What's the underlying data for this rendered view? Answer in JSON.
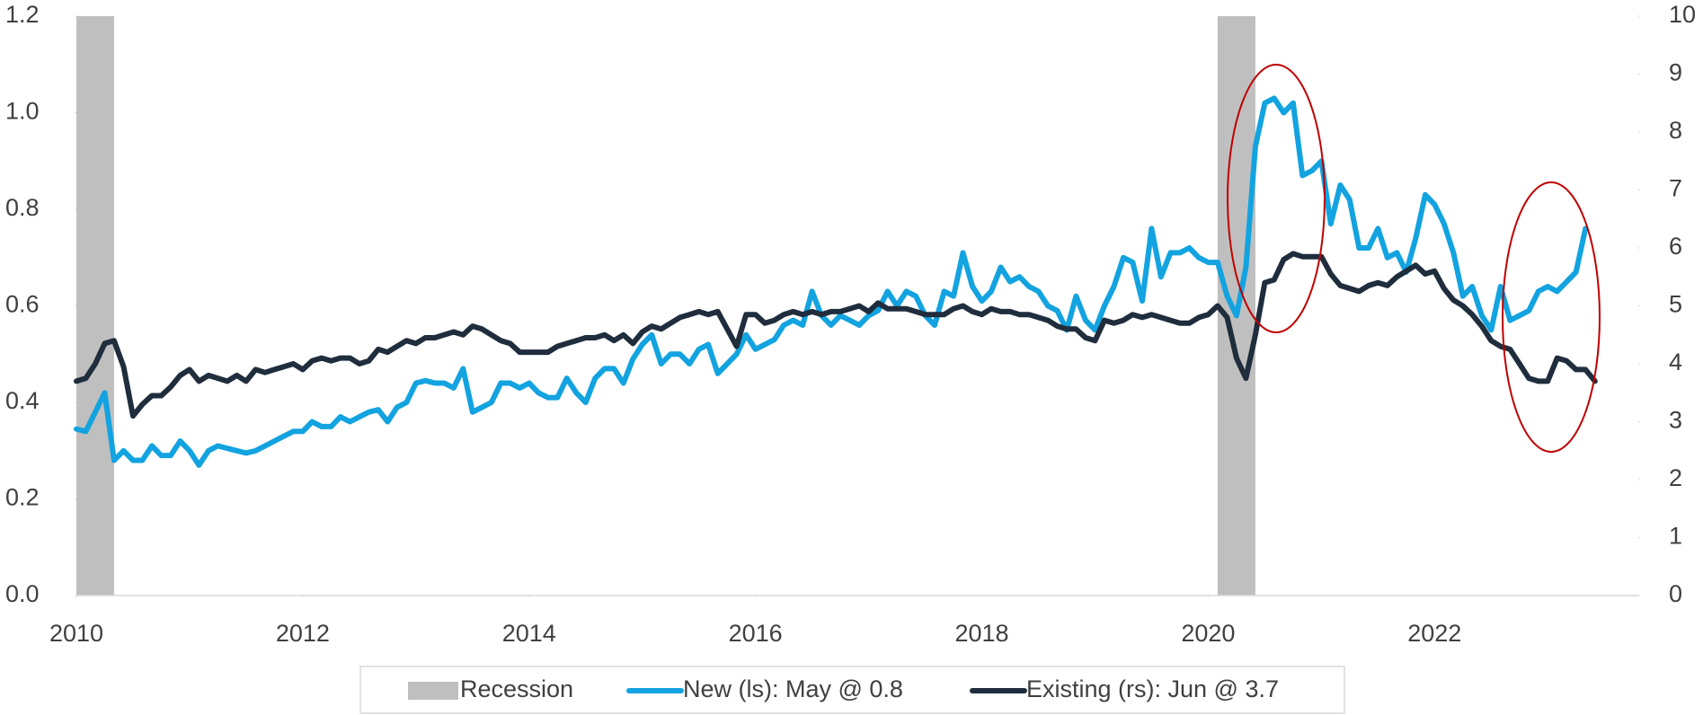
{
  "chart_data": {
    "type": "line",
    "x": [
      2010,
      2010.083,
      2010.167,
      2010.25,
      2010.333,
      2010.417,
      2010.5,
      2010.583,
      2010.667,
      2010.75,
      2010.833,
      2010.917,
      2011,
      2011.083,
      2011.167,
      2011.25,
      2011.333,
      2011.417,
      2011.5,
      2011.583,
      2011.667,
      2011.75,
      2011.833,
      2011.917,
      2012,
      2012.083,
      2012.167,
      2012.25,
      2012.333,
      2012.417,
      2012.5,
      2012.583,
      2012.667,
      2012.75,
      2012.833,
      2012.917,
      2013,
      2013.083,
      2013.167,
      2013.25,
      2013.333,
      2013.417,
      2013.5,
      2013.583,
      2013.667,
      2013.75,
      2013.833,
      2013.917,
      2014,
      2014.083,
      2014.167,
      2014.25,
      2014.333,
      2014.417,
      2014.5,
      2014.583,
      2014.667,
      2014.75,
      2014.833,
      2014.917,
      2015,
      2015.083,
      2015.167,
      2015.25,
      2015.333,
      2015.417,
      2015.5,
      2015.583,
      2015.667,
      2015.75,
      2015.833,
      2015.917,
      2016,
      2016.083,
      2016.167,
      2016.25,
      2016.333,
      2016.417,
      2016.5,
      2016.583,
      2016.667,
      2016.75,
      2016.833,
      2016.917,
      2017,
      2017.083,
      2017.167,
      2017.25,
      2017.333,
      2017.417,
      2017.5,
      2017.583,
      2017.667,
      2017.75,
      2017.833,
      2017.917,
      2018,
      2018.083,
      2018.167,
      2018.25,
      2018.333,
      2018.417,
      2018.5,
      2018.583,
      2018.667,
      2018.75,
      2018.833,
      2018.917,
      2019,
      2019.083,
      2019.167,
      2019.25,
      2019.333,
      2019.417,
      2019.5,
      2019.583,
      2019.667,
      2019.75,
      2019.833,
      2019.917,
      2020,
      2020.083,
      2020.167,
      2020.25,
      2020.333,
      2020.417,
      2020.5,
      2020.583,
      2020.667,
      2020.75,
      2020.833,
      2020.917,
      2021,
      2021.083,
      2021.167,
      2021.25,
      2021.333,
      2021.417,
      2021.5,
      2021.583,
      2021.667,
      2021.75,
      2021.833,
      2021.917,
      2022,
      2022.083,
      2022.167,
      2022.25,
      2022.333,
      2022.417,
      2022.5,
      2022.583,
      2022.667,
      2022.75,
      2022.833,
      2022.917,
      2023,
      2023.083,
      2023.167,
      2023.25,
      2023.333,
      2023.417
    ],
    "series": [
      {
        "name": "New (ls): May @ 0.8",
        "color": "#12a3e0",
        "axis": "y",
        "values": [
          0.345,
          0.34,
          0.38,
          0.42,
          0.28,
          0.3,
          0.28,
          0.28,
          0.31,
          0.29,
          0.29,
          0.32,
          0.3,
          0.27,
          0.3,
          0.31,
          0.305,
          0.3,
          0.295,
          0.3,
          0.31,
          0.32,
          0.33,
          0.34,
          0.34,
          0.36,
          0.35,
          0.35,
          0.37,
          0.36,
          0.37,
          0.38,
          0.385,
          0.36,
          0.39,
          0.4,
          0.44,
          0.445,
          0.44,
          0.44,
          0.43,
          0.47,
          0.38,
          0.39,
          0.4,
          0.44,
          0.44,
          0.43,
          0.44,
          0.42,
          0.41,
          0.41,
          0.45,
          0.42,
          0.4,
          0.45,
          0.47,
          0.47,
          0.44,
          0.49,
          0.52,
          0.54,
          0.48,
          0.5,
          0.5,
          0.48,
          0.51,
          0.52,
          0.46,
          0.48,
          0.5,
          0.54,
          0.51,
          0.52,
          0.53,
          0.56,
          0.57,
          0.56,
          0.63,
          0.58,
          0.56,
          0.58,
          0.57,
          0.56,
          0.58,
          0.59,
          0.63,
          0.6,
          0.63,
          0.62,
          0.58,
          0.56,
          0.63,
          0.62,
          0.71,
          0.64,
          0.61,
          0.63,
          0.68,
          0.65,
          0.66,
          0.64,
          0.63,
          0.6,
          0.59,
          0.55,
          0.62,
          0.57,
          0.55,
          0.6,
          0.64,
          0.7,
          0.69,
          0.61,
          0.76,
          0.66,
          0.71,
          0.71,
          0.72,
          0.7,
          0.69,
          0.69,
          0.62,
          0.58,
          0.68,
          0.93,
          1.02,
          1.03,
          1.0,
          1.02,
          0.87,
          0.88,
          0.9,
          0.77,
          0.85,
          0.82,
          0.72,
          0.72,
          0.76,
          0.7,
          0.71,
          0.67,
          0.74,
          0.83,
          0.81,
          0.77,
          0.71,
          0.62,
          0.64,
          0.58,
          0.55,
          0.64,
          0.57,
          0.58,
          0.59,
          0.63,
          0.64,
          0.63,
          0.65,
          0.67,
          0.76,
          null
        ]
      },
      {
        "name": "Existing (rs): Jun @ 3.7",
        "color": "#1f2d3d",
        "axis": "y2",
        "values": [
          3.7,
          3.75,
          4.0,
          4.35,
          4.4,
          3.95,
          3.1,
          3.3,
          3.45,
          3.45,
          3.6,
          3.8,
          3.9,
          3.7,
          3.8,
          3.75,
          3.7,
          3.8,
          3.7,
          3.9,
          3.85,
          3.9,
          3.95,
          4.0,
          3.9,
          4.05,
          4.1,
          4.05,
          4.1,
          4.1,
          4.0,
          4.05,
          4.25,
          4.2,
          4.3,
          4.4,
          4.35,
          4.45,
          4.45,
          4.5,
          4.55,
          4.5,
          4.65,
          4.6,
          4.5,
          4.4,
          4.35,
          4.2,
          4.2,
          4.2,
          4.2,
          4.3,
          4.35,
          4.4,
          4.45,
          4.45,
          4.5,
          4.4,
          4.5,
          4.35,
          4.55,
          4.65,
          4.6,
          4.7,
          4.8,
          4.85,
          4.9,
          4.85,
          4.9,
          4.6,
          4.3,
          4.85,
          4.85,
          4.7,
          4.75,
          4.85,
          4.9,
          4.85,
          4.9,
          4.85,
          4.9,
          4.9,
          4.95,
          5.0,
          4.9,
          5.05,
          4.95,
          4.95,
          4.95,
          4.9,
          4.85,
          4.85,
          4.85,
          4.95,
          5.0,
          4.9,
          4.85,
          4.95,
          4.9,
          4.9,
          4.85,
          4.85,
          4.8,
          4.75,
          4.65,
          4.6,
          4.6,
          4.45,
          4.4,
          4.75,
          4.7,
          4.75,
          4.85,
          4.8,
          4.85,
          4.8,
          4.75,
          4.7,
          4.7,
          4.8,
          4.85,
          5.0,
          4.8,
          4.1,
          3.75,
          4.5,
          5.4,
          5.45,
          5.8,
          5.9,
          5.85,
          5.85,
          5.85,
          5.55,
          5.35,
          5.3,
          5.25,
          5.35,
          5.4,
          5.35,
          5.5,
          5.6,
          5.7,
          5.55,
          5.6,
          5.3,
          5.1,
          5.0,
          4.85,
          4.65,
          4.4,
          4.3,
          4.25,
          4.0,
          3.75,
          3.7,
          3.7,
          4.1,
          4.05,
          3.9,
          3.9,
          3.7
        ]
      }
    ],
    "recession": {
      "name": "Recession",
      "color": "#bfbfbf",
      "spans": [
        [
          2010,
          2010.333
        ],
        [
          2020.083,
          2020.417
        ]
      ]
    },
    "xlim": [
      2010,
      2023.8
    ],
    "xticks": [
      2010,
      2012,
      2014,
      2016,
      2018,
      2020,
      2022
    ],
    "ylim": [
      0,
      1.2
    ],
    "yticks": [
      {
        "value": 0,
        "label": "0.0"
      },
      0.2,
      0.4,
      0.6,
      0.8,
      {
        "value": 1,
        "label": "1.0"
      },
      1.2
    ],
    "y2lim": [
      0,
      10
    ],
    "y2ticks": [
      0,
      1,
      2,
      3,
      4,
      5,
      6,
      7,
      8,
      9,
      10
    ],
    "legend": "bottom"
  }
}
